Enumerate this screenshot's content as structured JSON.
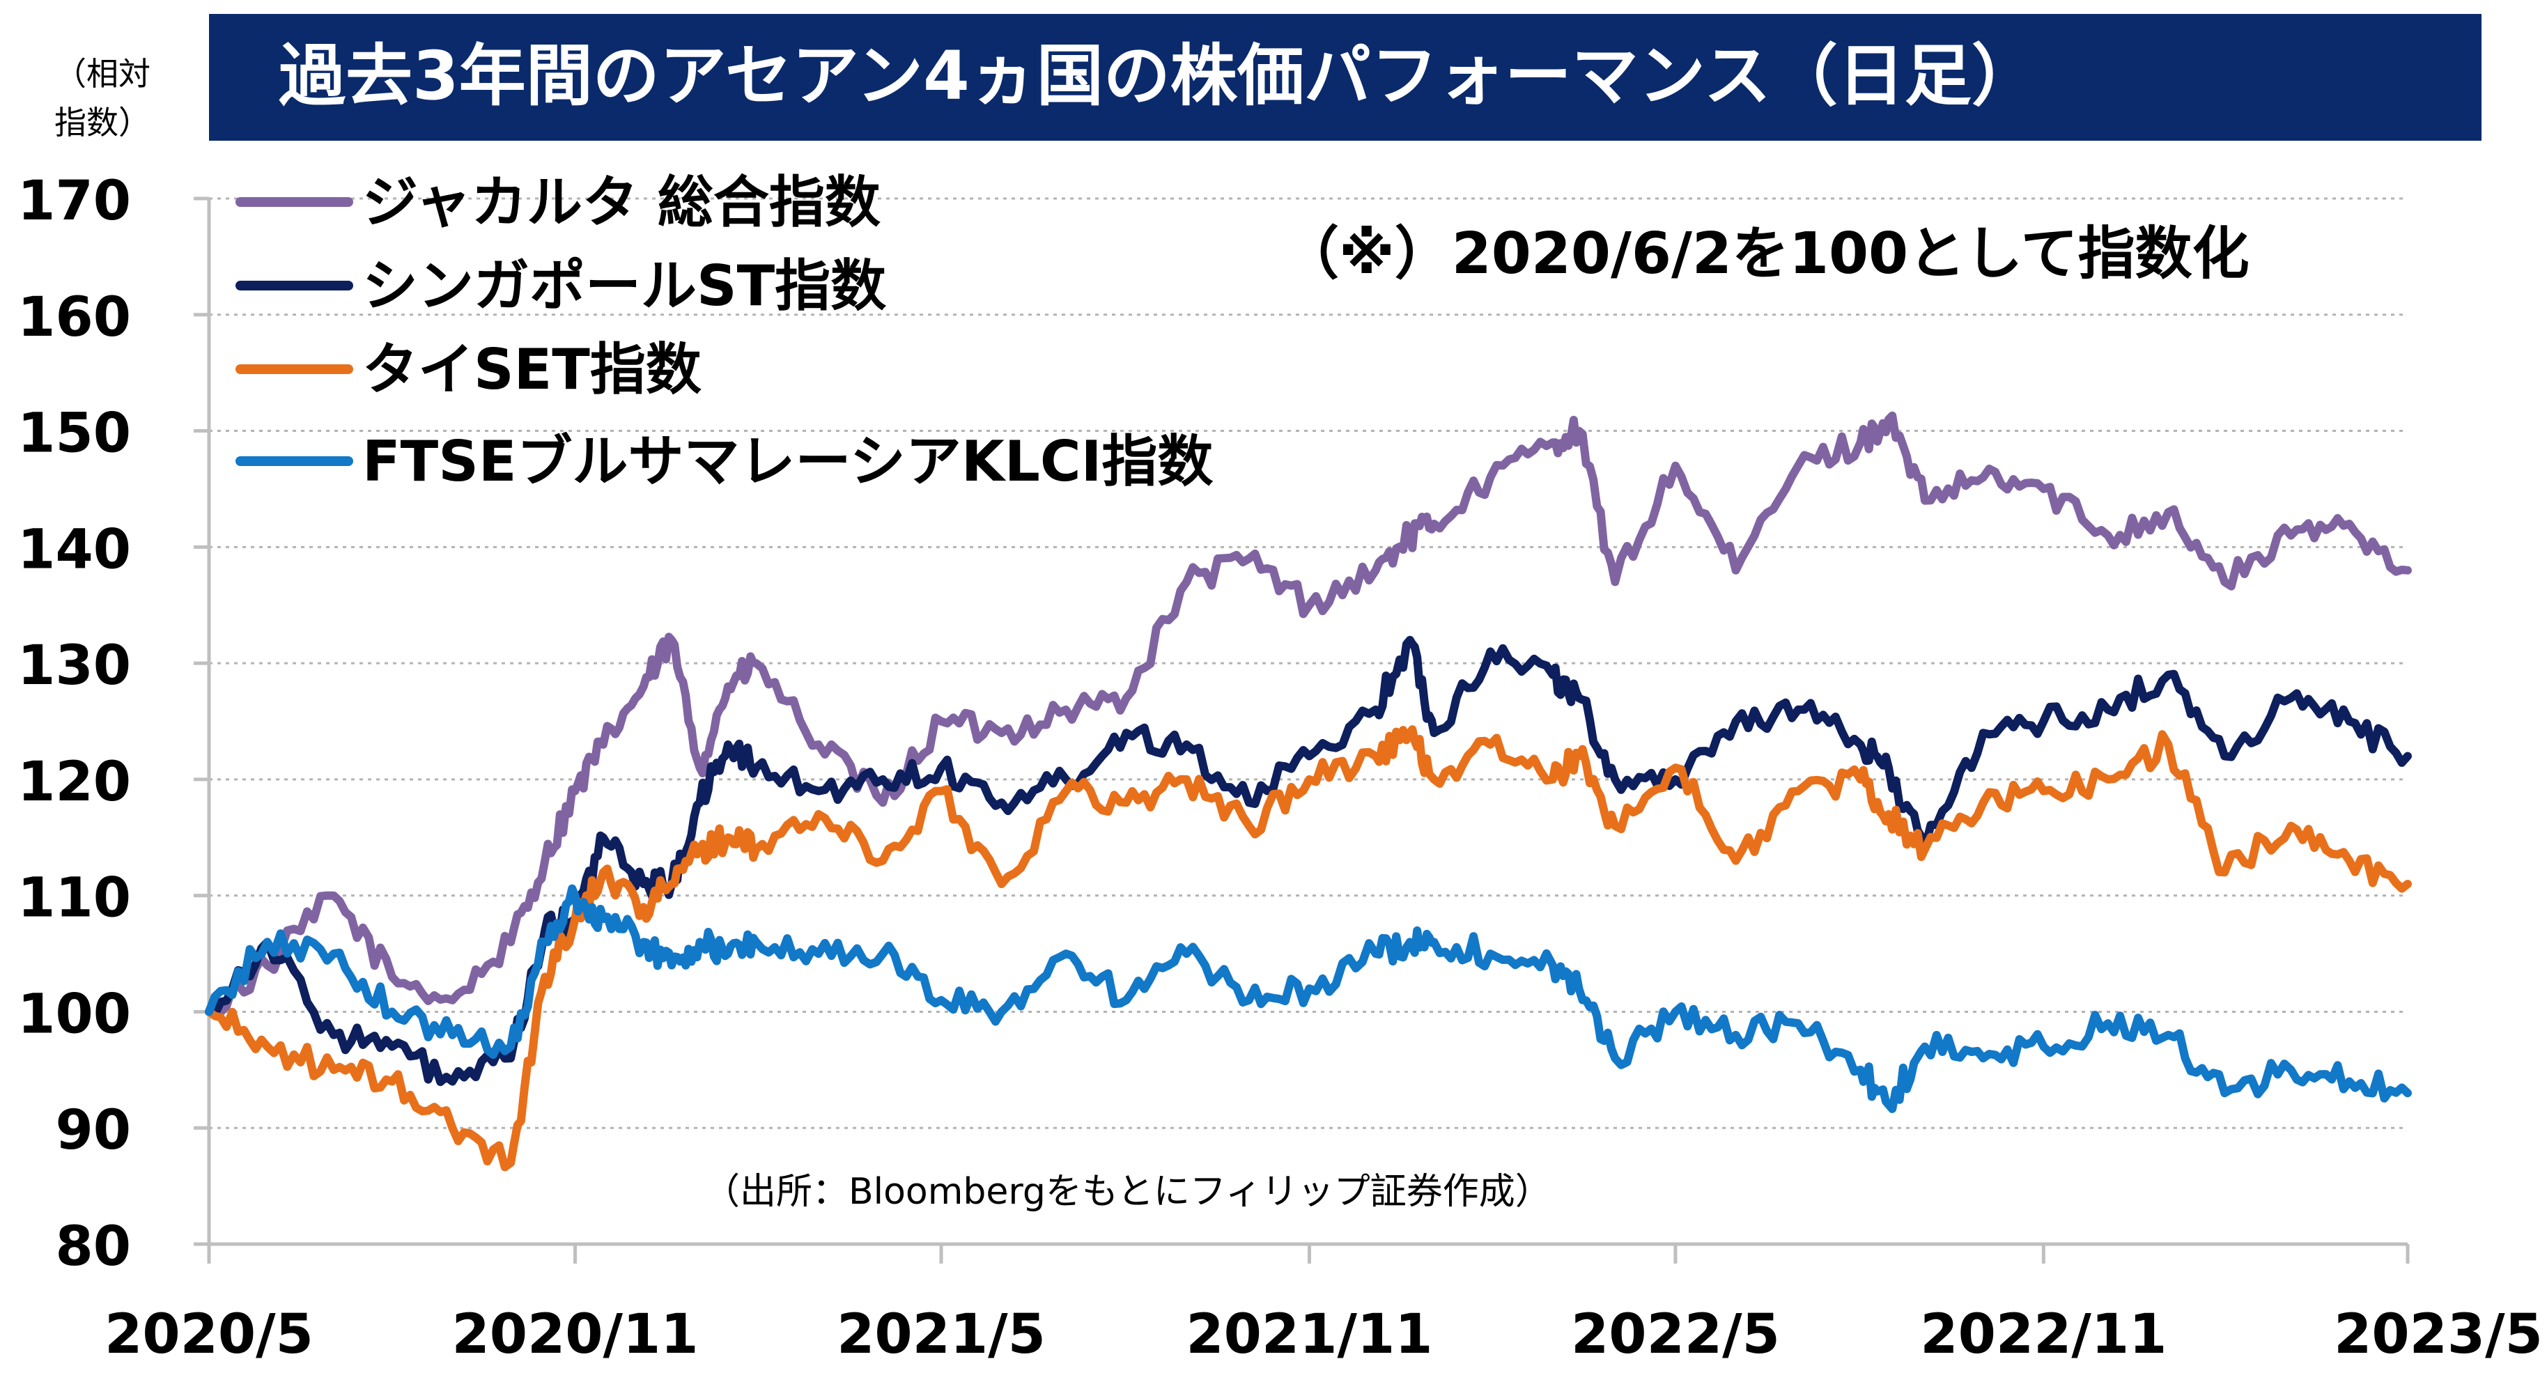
{
  "chart_data": {
    "type": "line",
    "title": "過去3年間のアセアン4ヵ国の株価パフォーマンス（日足）",
    "ylabel": "（相対指数）",
    "ylabel_lines": [
      "（相対",
      "指数）"
    ],
    "note": "（※）2020/6/2を100として指数化",
    "source": "（出所：Bloombergをもとにフィリップ証券作成）",
    "ylim": [
      80,
      170
    ],
    "yticks": [
      "170",
      "160",
      "150",
      "140",
      "130",
      "120",
      "110",
      "100",
      "90",
      "80"
    ],
    "xticks": [
      "2020/5",
      "2020/11",
      "2021/5",
      "2021/11",
      "2022/5",
      "2022/11",
      "2023/5"
    ],
    "grid": true,
    "legend_position": "top-left",
    "x": [
      "2020-06-02",
      "2020-07-01",
      "2020-08-03",
      "2020-09-01",
      "2020-10-01",
      "2020-10-30",
      "2020-11-16",
      "2020-12-01",
      "2020-12-15",
      "2021-01-04",
      "2021-01-18",
      "2021-02-01",
      "2021-02-15",
      "2021-03-01",
      "2021-04-01",
      "2021-05-03",
      "2021-06-01",
      "2021-07-01",
      "2021-08-02",
      "2021-09-01",
      "2021-10-01",
      "2021-11-01",
      "2021-12-01",
      "2022-01-03",
      "2022-01-20",
      "2022-02-01",
      "2022-03-01",
      "2022-04-01",
      "2022-04-14",
      "2022-05-02",
      "2022-06-01",
      "2022-07-01",
      "2022-08-01",
      "2022-09-01",
      "2022-09-15",
      "2022-10-03",
      "2022-11-01",
      "2022-12-01",
      "2023-01-02",
      "2023-02-01",
      "2023-03-01",
      "2023-04-03",
      "2023-05-02",
      "2023-05-31"
    ],
    "series": [
      {
        "name": "ジャカルタ 総合指数",
        "color": "#8064a2",
        "values": [
          100,
          104,
          110,
          103,
          101,
          106,
          113,
          119,
          123,
          128,
          132,
          121,
          128,
          130,
          123,
          118,
          125,
          124,
          126,
          127,
          137,
          139,
          135,
          138,
          141,
          142,
          146,
          149,
          150,
          137,
          147,
          138,
          147,
          149,
          151,
          144,
          146,
          145,
          141,
          143,
          137,
          141,
          142,
          138
        ]
      },
      {
        "name": "シンガポールST指数",
        "color": "#0d1f5c",
        "values": [
          100,
          106,
          98,
          97,
          94,
          96,
          107,
          108,
          115,
          111,
          111,
          118,
          123,
          121,
          119,
          120,
          121,
          118,
          120,
          124,
          123,
          118,
          122,
          126,
          132,
          124,
          131,
          129,
          127,
          120,
          120,
          125,
          126,
          123,
          121,
          114,
          124,
          125,
          126,
          129,
          122,
          127,
          125,
          122
        ]
      },
      {
        "name": "タイSET指数",
        "color": "#e8701a",
        "values": [
          100,
          97,
          95,
          94,
          90,
          87,
          103,
          108,
          112,
          109,
          111,
          114,
          115,
          114,
          117,
          113,
          119,
          111,
          119,
          118,
          120,
          116,
          120,
          122,
          124,
          120,
          123,
          120,
          122,
          116,
          121,
          113,
          119,
          120,
          117,
          114,
          118,
          119,
          120,
          123,
          112,
          116,
          113,
          111
        ]
      },
      {
        "name": "FTSEブルサマレーシアKLCI指数",
        "color": "#1278c8",
        "values": [
          100,
          106,
          105,
          100,
          98,
          97,
          106,
          110,
          108,
          106,
          104,
          106,
          105,
          106,
          105,
          105,
          101,
          100,
          105,
          101,
          105,
          101,
          102,
          105,
          106,
          106,
          105,
          104,
          102,
          96,
          100,
          98,
          99,
          95,
          92,
          97,
          96,
          97,
          99,
          98,
          93,
          95,
          94,
          93
        ]
      }
    ]
  }
}
